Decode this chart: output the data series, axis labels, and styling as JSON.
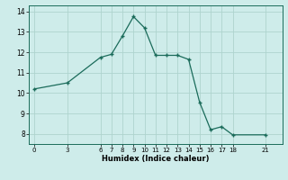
{
  "x": [
    0,
    3,
    6,
    7,
    8,
    9,
    10,
    11,
    12,
    13,
    14,
    15,
    16,
    17,
    18,
    21
  ],
  "y": [
    10.2,
    10.5,
    11.75,
    11.9,
    12.8,
    13.75,
    13.2,
    11.85,
    11.85,
    11.85,
    11.65,
    9.55,
    8.2,
    8.35,
    7.95,
    7.95
  ],
  "line_color": "#1a6b5a",
  "bg_color": "#ceecea",
  "grid_color": "#aed4ce",
  "xlabel": "Humidex (Indice chaleur)",
  "xticks": [
    0,
    3,
    6,
    7,
    8,
    9,
    10,
    11,
    12,
    13,
    14,
    15,
    16,
    17,
    18,
    21
  ],
  "yticks": [
    8,
    9,
    10,
    11,
    12,
    13,
    14
  ],
  "ylim": [
    7.5,
    14.3
  ],
  "xlim": [
    -0.5,
    22.5
  ]
}
